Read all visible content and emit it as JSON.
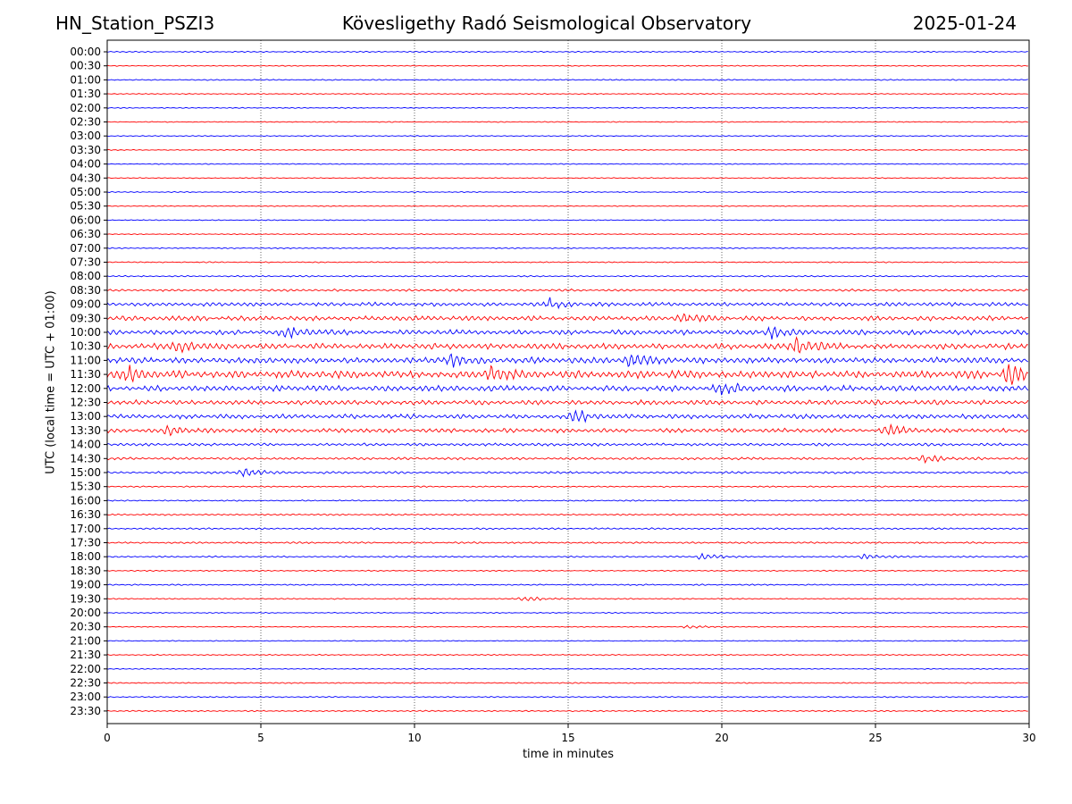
{
  "header": {
    "station": "HN_Station_PSZI3",
    "observatory": "Kövesligethy Radó Seismological Observatory",
    "date": "2025-01-24"
  },
  "chart_data": {
    "type": "line",
    "title": "Kövesligethy Radó Seismological Observatory",
    "xlabel": "time in minutes",
    "ylabel": "UTC (local time = UTC + 01:00)",
    "xlim": [
      0,
      30
    ],
    "xticks": [
      0,
      5,
      10,
      15,
      20,
      25,
      30
    ],
    "grid_x": [
      5,
      10,
      15,
      20,
      25
    ],
    "colors": [
      "#0000ff",
      "#ff0000"
    ],
    "rows": [
      "00:00",
      "00:30",
      "01:00",
      "01:30",
      "02:00",
      "02:30",
      "03:00",
      "03:30",
      "04:00",
      "04:30",
      "05:00",
      "05:30",
      "06:00",
      "06:30",
      "07:00",
      "07:30",
      "08:00",
      "08:30",
      "09:00",
      "09:30",
      "10:00",
      "10:30",
      "11:00",
      "11:30",
      "12:00",
      "12:30",
      "13:00",
      "13:30",
      "14:00",
      "14:30",
      "15:00",
      "15:30",
      "16:00",
      "16:30",
      "17:00",
      "17:30",
      "18:00",
      "18:30",
      "19:00",
      "19:30",
      "20:00",
      "20:30",
      "21:00",
      "21:30",
      "22:00",
      "22:30",
      "23:00",
      "23:30"
    ],
    "noise_amplitude": [
      0.6,
      0.5,
      0.6,
      0.5,
      0.5,
      0.5,
      0.5,
      0.5,
      0.5,
      0.5,
      0.5,
      0.5,
      0.5,
      0.5,
      0.6,
      0.6,
      0.7,
      1.2,
      2.0,
      2.5,
      2.6,
      3.0,
      3.2,
      4.0,
      3.0,
      2.5,
      2.4,
      2.2,
      1.5,
      1.3,
      1.2,
      0.7,
      0.7,
      0.8,
      0.9,
      0.9,
      0.8,
      0.6,
      0.7,
      0.6,
      0.5,
      0.5,
      0.5,
      0.6,
      0.5,
      0.6,
      0.6,
      0.7
    ],
    "events": [
      {
        "row": "09:00",
        "t": 14.4,
        "amp": 5
      },
      {
        "row": "09:30",
        "t": 18.7,
        "amp": 5
      },
      {
        "row": "10:00",
        "t": 5.8,
        "amp": 7
      },
      {
        "row": "10:00",
        "t": 21.6,
        "amp": 6
      },
      {
        "row": "10:30",
        "t": 2.3,
        "amp": 6
      },
      {
        "row": "10:30",
        "t": 22.4,
        "amp": 9
      },
      {
        "row": "11:00",
        "t": 11.2,
        "amp": 6
      },
      {
        "row": "11:00",
        "t": 17.0,
        "amp": 6
      },
      {
        "row": "11:30",
        "t": 12.5,
        "amp": 8
      },
      {
        "row": "11:30",
        "t": 29.3,
        "amp": 12
      },
      {
        "row": "11:30",
        "t": 0.6,
        "amp": 8
      },
      {
        "row": "12:00",
        "t": 20.0,
        "amp": 8
      },
      {
        "row": "13:00",
        "t": 15.2,
        "amp": 6
      },
      {
        "row": "13:30",
        "t": 2.0,
        "amp": 6
      },
      {
        "row": "13:30",
        "t": 25.4,
        "amp": 5
      },
      {
        "row": "14:30",
        "t": 26.6,
        "amp": 5
      },
      {
        "row": "15:00",
        "t": 4.4,
        "amp": 5
      },
      {
        "row": "18:00",
        "t": 19.3,
        "amp": 4
      },
      {
        "row": "18:00",
        "t": 24.6,
        "amp": 3
      },
      {
        "row": "19:30",
        "t": 13.6,
        "amp": 3
      },
      {
        "row": "20:30",
        "t": 18.9,
        "amp": 2
      }
    ]
  }
}
